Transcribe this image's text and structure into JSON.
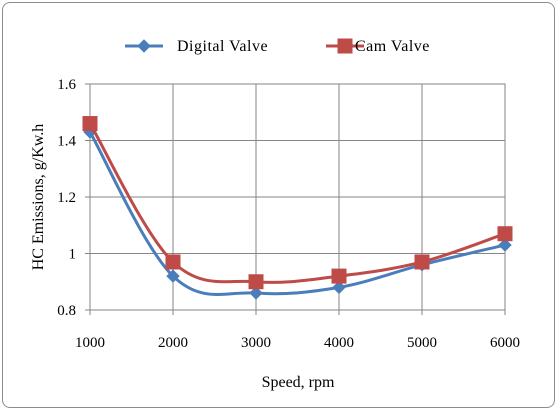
{
  "chart_data": {
    "type": "line",
    "xlabel": "Speed, rpm",
    "ylabel": "HC Emissions, g/Kw.h",
    "x": [
      1000,
      2000,
      3000,
      4000,
      5000,
      6000
    ],
    "xlim": [
      1000,
      6000
    ],
    "ylim": [
      0.8,
      1.6
    ],
    "x_ticks": [
      "1000",
      "2000",
      "3000",
      "4000",
      "5000",
      "6000"
    ],
    "y_ticks": [
      "0.8",
      "1",
      "1.2",
      "1.4",
      "1.6"
    ],
    "grid": "vertical and horizontal",
    "legend_position": "top",
    "series": [
      {
        "name": "Digital Valve",
        "values": [
          1.43,
          0.92,
          0.86,
          0.88,
          0.96,
          1.03
        ],
        "color": "#4a7ebb",
        "marker": "diamond"
      },
      {
        "name": "Cam Valve",
        "values": [
          1.46,
          0.97,
          0.9,
          0.92,
          0.97,
          1.07
        ],
        "color": "#be4b48",
        "marker": "square"
      }
    ]
  }
}
